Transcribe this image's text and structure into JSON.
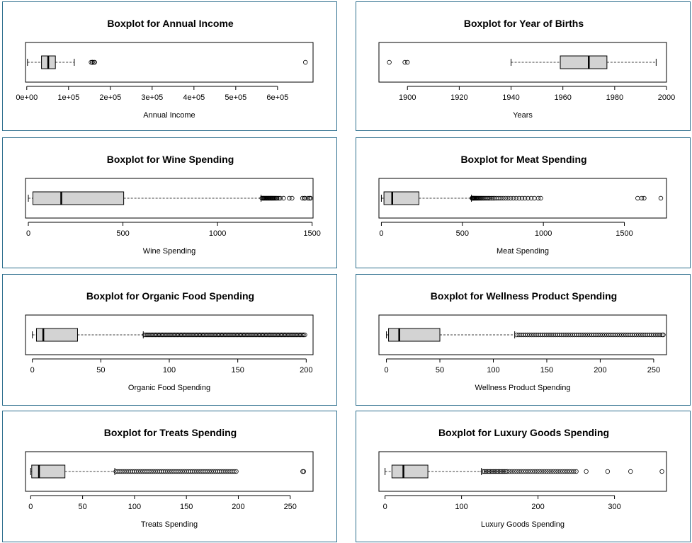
{
  "colors": {
    "panel_border": "#2e6f8e",
    "box_fill": "#d3d3d3",
    "stroke": "#000000"
  },
  "chart_data": [
    {
      "type": "boxplot",
      "title": "Boxplot for Annual Income",
      "xlabel": "Annual Income",
      "xlim": [
        -3000,
        685000
      ],
      "ticks": [
        0,
        100000,
        200000,
        300000,
        400000,
        500000,
        600000
      ],
      "tick_labels": [
        "0e+00",
        "1e+05",
        "2e+05",
        "3e+05",
        "4e+05",
        "5e+05",
        "6e+05"
      ],
      "stats": {
        "min": 1730,
        "q1": 35300,
        "median": 51400,
        "q3": 68500,
        "max": 113700
      },
      "outliers": [
        153900,
        156900,
        157100,
        157200,
        160800,
        162400,
        666700
      ]
    },
    {
      "type": "boxplot",
      "title": "Boxplot for Year of Births",
      "xlabel": "Years",
      "xlim": [
        1889,
        2000
      ],
      "ticks": [
        1900,
        1920,
        1940,
        1960,
        1980,
        2000
      ],
      "tick_labels": [
        "1900",
        "1920",
        "1940",
        "1960",
        "1980",
        "2000"
      ],
      "stats": {
        "min": 1940,
        "q1": 1959,
        "median": 1970,
        "q3": 1977,
        "max": 1996
      },
      "outliers": [
        1893,
        1899,
        1900
      ]
    },
    {
      "type": "boxplot",
      "title": "Boxplot for Wine Spending",
      "xlabel": "Wine Spending",
      "xlim": [
        -15,
        1505
      ],
      "ticks": [
        0,
        500,
        1000,
        1500
      ],
      "tick_labels": [
        "0",
        "500",
        "1000",
        "1500"
      ],
      "stats": {
        "min": 0,
        "q1": 24,
        "median": 174,
        "q3": 504,
        "max": 1230
      },
      "outliers": [
        1234,
        1239,
        1241,
        1245,
        1248,
        1252,
        1256,
        1259,
        1263,
        1267,
        1270,
        1274,
        1278,
        1281,
        1285,
        1288,
        1292,
        1296,
        1300,
        1305,
        1310,
        1315,
        1324,
        1332,
        1349,
        1379,
        1394,
        1449,
        1459,
        1462,
        1478,
        1486,
        1492
      ]
    },
    {
      "type": "boxplot",
      "title": "Boxplot for Meat Spending",
      "xlabel": "Meat Spending",
      "xlim": [
        -15,
        1760
      ],
      "ticks": [
        0,
        500,
        1000,
        1500
      ],
      "tick_labels": [
        "0",
        "500",
        "1000",
        "1500"
      ],
      "stats": {
        "min": 0,
        "q1": 16,
        "median": 67,
        "q3": 232,
        "max": 556
      },
      "outliers": [
        559,
        562,
        565,
        568,
        571,
        574,
        578,
        582,
        586,
        590,
        595,
        600,
        605,
        611,
        617,
        623,
        630,
        637,
        645,
        653,
        661,
        670,
        680,
        690,
        700,
        712,
        725,
        738,
        752,
        767,
        782,
        798,
        815,
        832,
        850,
        868,
        886,
        905,
        925,
        945,
        968,
        984,
        1582,
        1607,
        1622,
        1725
      ]
    },
    {
      "type": "boxplot",
      "title": "Boxplot for Organic Food Spending",
      "xlabel": "Organic Food Spending",
      "xlim": [
        -5,
        205
      ],
      "ticks": [
        0,
        50,
        100,
        150,
        200
      ],
      "tick_labels": [
        "0",
        "50",
        "100",
        "150",
        "200"
      ],
      "stats": {
        "min": 0,
        "q1": 3,
        "median": 8,
        "q3": 33,
        "max": 81
      },
      "outliers": [
        82,
        83,
        84,
        85,
        86,
        87,
        88,
        89,
        90,
        91,
        92,
        93,
        94,
        95,
        96,
        97,
        98,
        99,
        100,
        101,
        102,
        103,
        104,
        105,
        106,
        107,
        108,
        109,
        110,
        111,
        112,
        113,
        114,
        115,
        116,
        117,
        118,
        119,
        120,
        121,
        122,
        123,
        124,
        125,
        126,
        127,
        128,
        129,
        130,
        131,
        132,
        133,
        134,
        135,
        136,
        137,
        138,
        139,
        140,
        141,
        142,
        143,
        144,
        145,
        146,
        147,
        148,
        149,
        150,
        151,
        152,
        153,
        154,
        155,
        156,
        157,
        158,
        159,
        160,
        161,
        162,
        163,
        164,
        165,
        166,
        167,
        168,
        169,
        170,
        171,
        172,
        173,
        174,
        175,
        176,
        177,
        178,
        179,
        180,
        181,
        182,
        183,
        184,
        185,
        186,
        187,
        188,
        189,
        190,
        191,
        192,
        193,
        194,
        195,
        196,
        197,
        198,
        199
      ]
    },
    {
      "type": "boxplot",
      "title": "Boxplot for Wellness Product Spending",
      "xlabel": "Wellness Product Spending",
      "xlim": [
        -7,
        262
      ],
      "ticks": [
        0,
        50,
        100,
        150,
        200,
        250
      ],
      "tick_labels": [
        "0",
        "50",
        "100",
        "150",
        "200",
        "250"
      ],
      "stats": {
        "min": 0,
        "q1": 2,
        "median": 12,
        "q3": 50,
        "max": 120
      },
      "outliers": [
        122,
        124,
        126,
        128,
        130,
        132,
        134,
        136,
        138,
        140,
        142,
        144,
        146,
        148,
        150,
        152,
        154,
        156,
        158,
        160,
        162,
        164,
        166,
        168,
        170,
        172,
        174,
        176,
        178,
        180,
        182,
        184,
        186,
        188,
        190,
        192,
        194,
        196,
        198,
        200,
        202,
        204,
        206,
        208,
        210,
        212,
        214,
        216,
        218,
        220,
        222,
        224,
        226,
        228,
        230,
        232,
        234,
        236,
        238,
        240,
        242,
        244,
        246,
        248,
        250,
        252,
        254,
        256,
        258,
        259
      ]
    },
    {
      "type": "boxplot",
      "title": "Boxplot for Treats Spending",
      "xlabel": "Treats Spending",
      "xlim": [
        -5,
        272
      ],
      "ticks": [
        0,
        50,
        100,
        150,
        200,
        250
      ],
      "tick_labels": [
        "0",
        "50",
        "100",
        "150",
        "200",
        "250"
      ],
      "stats": {
        "min": 0,
        "q1": 1,
        "median": 8,
        "q3": 33,
        "max": 81
      },
      "outliers": [
        82,
        84,
        86,
        88,
        90,
        92,
        94,
        96,
        98,
        100,
        102,
        104,
        106,
        108,
        110,
        112,
        114,
        116,
        118,
        120,
        122,
        124,
        126,
        128,
        130,
        132,
        134,
        136,
        138,
        140,
        142,
        144,
        146,
        148,
        150,
        152,
        154,
        156,
        158,
        160,
        162,
        164,
        166,
        168,
        170,
        172,
        174,
        176,
        178,
        180,
        182,
        184,
        186,
        188,
        190,
        192,
        194,
        196,
        198,
        262,
        263
      ]
    },
    {
      "type": "boxplot",
      "title": "Boxplot for Luxury Goods Spending",
      "xlabel": "Luxury Goods Spending",
      "xlim": [
        -8,
        368
      ],
      "ticks": [
        0,
        100,
        200,
        300
      ],
      "tick_labels": [
        "0",
        "100",
        "200",
        "300"
      ],
      "stats": {
        "min": 0,
        "q1": 9,
        "median": 24,
        "q3": 56,
        "max": 126
      },
      "outliers": [
        128,
        130,
        132,
        134,
        136,
        138,
        140,
        142,
        144,
        146,
        148,
        150,
        152,
        154,
        156,
        158,
        160,
        163,
        166,
        169,
        172,
        175,
        178,
        181,
        184,
        187,
        190,
        193,
        196,
        199,
        202,
        205,
        208,
        211,
        214,
        217,
        220,
        223,
        226,
        229,
        232,
        235,
        238,
        241,
        244,
        247,
        250,
        263,
        291,
        321,
        362
      ]
    }
  ]
}
